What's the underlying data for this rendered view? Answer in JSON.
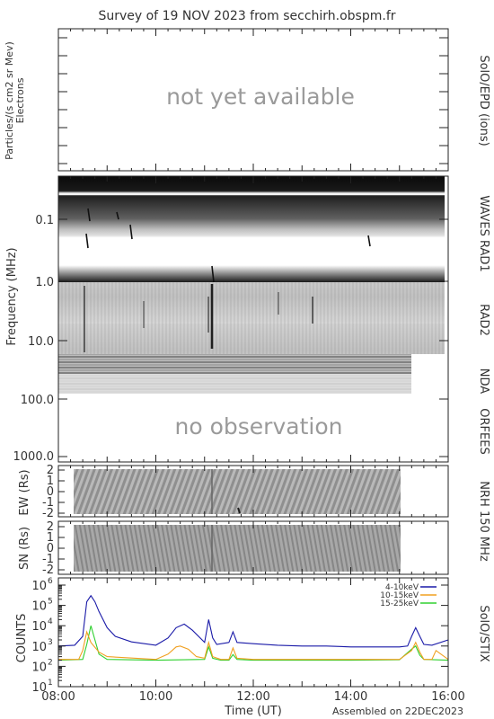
{
  "title": "Survey of 19 NOV 2023 from secchirh.obspm.fr",
  "footer": "Assembled on 22DEC2023",
  "panel_particles": {
    "ylabel_1": "Particles/(s cm2 sr Mev)",
    "ylabel_2": "Electrons",
    "overlay": "not yet available",
    "side_label": "SolO/EPD (ions)"
  },
  "panel_radio": {
    "ylabel": "Frequency (MHz)",
    "yticks": [
      "0.1",
      "1.0",
      "10.0",
      "100.0",
      "1000.0"
    ],
    "overlay": "no observation",
    "side_labels": [
      "WAVES RAD1",
      "RAD2",
      "NDA",
      "ORFEES"
    ]
  },
  "panel_ew": {
    "ylabel": "EW (Rs)",
    "yticks": [
      "2",
      "1",
      "0",
      "-1",
      "-2"
    ]
  },
  "panel_sn": {
    "ylabel": "SN (Rs)",
    "yticks": [
      "2",
      "1",
      "0",
      "-1",
      "-2"
    ]
  },
  "nrh_label": "NRH 150 MHz",
  "stix": {
    "ylabel": "COUNTS",
    "side_label": "SolO/STIX",
    "ytick_exponents": [
      "6",
      "5",
      "4",
      "3",
      "2",
      "1"
    ],
    "ytick_base": "10"
  },
  "xaxis": {
    "label": "Time (UT)",
    "ticks": [
      "08:00",
      "10:00",
      "12:00",
      "14:00",
      "16:00"
    ]
  },
  "colors": {
    "band1": "#1a1aa8",
    "band2": "#f0a020",
    "band3": "#30d030"
  },
  "chart_data": {
    "type": "line",
    "x_range": [
      "08:00",
      "16:00"
    ],
    "y_scale": "log",
    "ylim": [
      10,
      1000000
    ],
    "series": [
      {
        "name": "4-10keV",
        "x": [
          "08:00",
          "08:20",
          "08:30",
          "08:35",
          "08:40",
          "08:45",
          "08:50",
          "09:00",
          "09:10",
          "09:30",
          "10:00",
          "10:15",
          "10:25",
          "10:35",
          "10:45",
          "11:00",
          "11:05",
          "11:10",
          "11:15",
          "11:30",
          "11:35",
          "11:40",
          "12:00",
          "12:30",
          "13:00",
          "13:30",
          "14:00",
          "14:30",
          "15:00",
          "15:10",
          "15:15",
          "15:20",
          "15:25",
          "15:30",
          "15:40",
          "16:00"
        ],
        "values": [
          1000,
          1100,
          3000,
          150000,
          300000,
          150000,
          50000,
          8000,
          3000,
          1600,
          1100,
          2500,
          8000,
          12000,
          6000,
          1500,
          20000,
          2500,
          1200,
          1500,
          5000,
          1500,
          1300,
          1100,
          1000,
          1000,
          900,
          900,
          900,
          1000,
          3000,
          8000,
          3000,
          1200,
          1100,
          2000
        ]
      },
      {
        "name": "10-15keV",
        "x": [
          "08:00",
          "08:25",
          "08:30",
          "08:35",
          "08:40",
          "08:50",
          "09:00",
          "10:00",
          "10:15",
          "10:25",
          "10:30",
          "10:40",
          "10:50",
          "11:00",
          "11:05",
          "11:10",
          "11:20",
          "11:30",
          "11:35",
          "11:40",
          "12:00",
          "13:00",
          "14:00",
          "15:00",
          "15:15",
          "15:20",
          "15:25",
          "15:30",
          "15:40",
          "15:45",
          "16:00"
        ],
        "values": [
          220,
          220,
          600,
          5000,
          1500,
          500,
          300,
          220,
          400,
          900,
          1000,
          700,
          300,
          250,
          1500,
          300,
          220,
          220,
          800,
          250,
          220,
          220,
          220,
          220,
          600,
          1500,
          500,
          220,
          220,
          600,
          220
        ]
      },
      {
        "name": "15-25keV",
        "x": [
          "08:00",
          "08:30",
          "08:35",
          "08:40",
          "08:45",
          "08:50",
          "09:00",
          "10:00",
          "11:00",
          "11:05",
          "11:10",
          "11:20",
          "11:30",
          "11:35",
          "11:40",
          "12:00",
          "13:00",
          "14:00",
          "15:00",
          "15:15",
          "15:20",
          "15:25",
          "15:30",
          "16:00"
        ],
        "values": [
          200,
          220,
          1200,
          10000,
          2000,
          400,
          220,
          200,
          220,
          900,
          250,
          200,
          200,
          380,
          220,
          200,
          200,
          200,
          210,
          700,
          1000,
          350,
          220,
          200
        ]
      }
    ]
  }
}
